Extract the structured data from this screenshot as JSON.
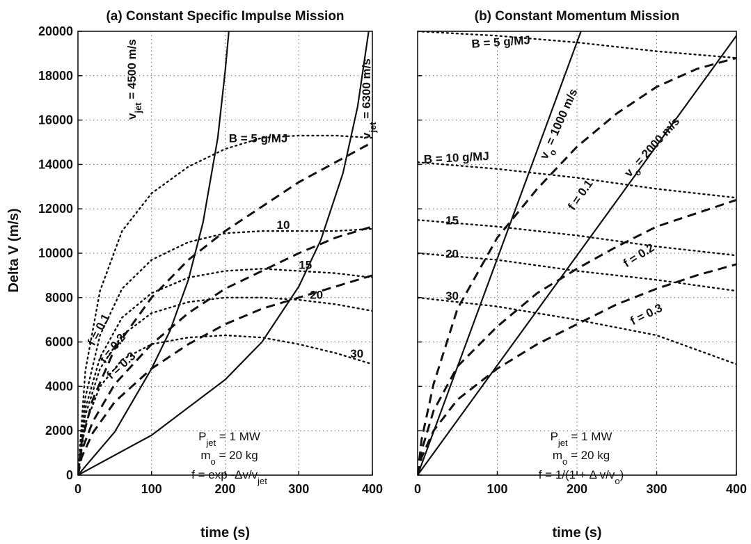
{
  "colors": {
    "ink": "#111111",
    "grid": "#666666",
    "background": "#ffffff"
  },
  "ylabel": "Delta V (m/s)",
  "xlabel": "time (s)",
  "chart_data": [
    {
      "type": "line",
      "title": "(a) Constant Specific Impulse Mission",
      "xlabel": "time (s)",
      "ylabel": "Delta V (m/s)",
      "xlim": [
        0,
        400
      ],
      "ylim": [
        0,
        20000
      ],
      "xticks": [
        "0",
        "100",
        "200",
        "300",
        "400"
      ],
      "yticks": [
        "0",
        "2000",
        "4000",
        "6000",
        "8000",
        "10000",
        "12000",
        "14000",
        "16000",
        "18000",
        "20000"
      ],
      "grid": true,
      "params": {
        "line1": "P",
        "line1_sub": "jet",
        "line1_tail": " = 1 MW",
        "line2": "m",
        "line2_sub": "o",
        "line2_tail": " = 20 kg",
        "line3": "f = exp -Δv/v",
        "line3_sub": "jet"
      },
      "series": [
        {
          "name": "v_jet = 4500 m/s",
          "style": "solid",
          "x": [
            0,
            50,
            100,
            125,
            150,
            170,
            190,
            200,
            205
          ],
          "y": [
            0,
            1950,
            4800,
            6500,
            8800,
            11400,
            15200,
            18200,
            20000
          ]
        },
        {
          "name": "v_jet = 6300 m/s",
          "style": "solid",
          "x": [
            0,
            100,
            200,
            250,
            300,
            330,
            360,
            380,
            395
          ],
          "y": [
            0,
            1800,
            4300,
            6000,
            8500,
            10600,
            13600,
            16600,
            20000
          ]
        },
        {
          "name": "f = 0.1",
          "style": "dashed",
          "x": [
            0,
            5,
            20,
            50,
            100,
            150,
            200,
            250,
            300,
            350,
            400
          ],
          "y": [
            0,
            1500,
            3400,
            5700,
            8000,
            9700,
            11000,
            12100,
            13200,
            14100,
            15000
          ]
        },
        {
          "name": "f = 0.2",
          "style": "dashed",
          "x": [
            0,
            5,
            20,
            50,
            100,
            150,
            200,
            250,
            300,
            350,
            400
          ],
          "y": [
            0,
            1100,
            2400,
            4100,
            5900,
            7300,
            8400,
            9200,
            10000,
            10700,
            11200
          ]
        },
        {
          "name": "f = 0.3",
          "style": "dashed",
          "x": [
            0,
            5,
            20,
            50,
            100,
            150,
            200,
            250,
            300,
            350,
            400
          ],
          "y": [
            0,
            800,
            1900,
            3300,
            4800,
            5900,
            6800,
            7500,
            8000,
            8500,
            9000
          ]
        },
        {
          "name": "B = 5 g/MJ",
          "style": "dotted",
          "x": [
            0,
            10,
            30,
            60,
            100,
            150,
            200,
            250,
            300,
            350,
            400
          ],
          "y": [
            0,
            4700,
            8300,
            11000,
            12700,
            13900,
            14700,
            15200,
            15300,
            15300,
            15200
          ]
        },
        {
          "name": "10",
          "style": "dotted",
          "x": [
            0,
            10,
            30,
            60,
            100,
            150,
            200,
            250,
            300,
            350,
            400
          ],
          "y": [
            0,
            3500,
            6300,
            8400,
            9700,
            10500,
            10900,
            11000,
            11000,
            11000,
            11100
          ]
        },
        {
          "name": "15",
          "style": "dotted",
          "x": [
            0,
            10,
            30,
            60,
            100,
            150,
            200,
            250,
            300,
            350,
            400
          ],
          "y": [
            0,
            3000,
            5300,
            7100,
            8200,
            8900,
            9200,
            9300,
            9200,
            9100,
            8900
          ]
        },
        {
          "name": "20",
          "style": "dotted",
          "x": [
            0,
            10,
            30,
            60,
            100,
            150,
            200,
            250,
            300,
            350,
            400
          ],
          "y": [
            0,
            2700,
            4800,
            6300,
            7300,
            7800,
            8000,
            8000,
            7900,
            7700,
            7400
          ]
        },
        {
          "name": "30",
          "style": "dotted",
          "x": [
            0,
            10,
            30,
            60,
            100,
            150,
            200,
            250,
            300,
            350,
            400
          ],
          "y": [
            0,
            2300,
            4000,
            5200,
            5900,
            6200,
            6300,
            6200,
            5900,
            5500,
            5000
          ]
        }
      ]
    },
    {
      "type": "line",
      "title": "(b) Constant Momentum Mission",
      "xlabel": "time (s)",
      "xlim": [
        0,
        400
      ],
      "ylim": [
        0,
        20000
      ],
      "xticks": [
        "0",
        "100",
        "200",
        "300",
        "400"
      ],
      "grid": true,
      "params": {
        "line1": "P",
        "line1_sub": "jet",
        "line1_tail": " = 1 MW",
        "line2": "m",
        "line2_sub": "o",
        "line2_tail": " = 20 kg",
        "line3": "f = 1/(1 + Δ v/v",
        "line3_sub": "o",
        "line3_tail": ")"
      },
      "series": [
        {
          "name": "v_o = 1000 m/s",
          "style": "solid",
          "x": [
            0,
            205
          ],
          "y": [
            0,
            20000
          ]
        },
        {
          "name": "v_o = 2000 m/s",
          "style": "solid",
          "x": [
            0,
            400
          ],
          "y": [
            0,
            19800
          ]
        },
        {
          "name": "f = 0.1",
          "style": "dashed",
          "x": [
            0,
            5,
            20,
            50,
            100,
            150,
            200,
            250,
            300,
            350,
            400
          ],
          "y": [
            0,
            1600,
            4100,
            7500,
            10700,
            12900,
            14800,
            16300,
            17500,
            18300,
            18800
          ]
        },
        {
          "name": "f = 0.2",
          "style": "dashed",
          "x": [
            0,
            5,
            20,
            50,
            100,
            150,
            200,
            250,
            300,
            350,
            400
          ],
          "y": [
            0,
            1100,
            2900,
            4900,
            6700,
            8200,
            9300,
            10300,
            11200,
            11800,
            12400
          ]
        },
        {
          "name": "f = 0.3",
          "style": "dashed",
          "x": [
            0,
            5,
            20,
            50,
            100,
            150,
            200,
            250,
            300,
            350,
            400
          ],
          "y": [
            0,
            800,
            2000,
            3400,
            4800,
            5900,
            6800,
            7700,
            8400,
            9000,
            9500
          ]
        },
        {
          "name": "B = 5 g/MJ",
          "style": "dotted",
          "x": [
            0,
            100,
            200,
            300,
            400
          ],
          "y": [
            20000,
            19800,
            19500,
            19100,
            18800
          ]
        },
        {
          "name": "B = 10 g/MJ",
          "style": "dotted",
          "x": [
            0,
            100,
            200,
            300,
            400
          ],
          "y": [
            14100,
            13800,
            13400,
            12900,
            12500
          ]
        },
        {
          "name": "15",
          "style": "dotted",
          "x": [
            0,
            100,
            200,
            300,
            400
          ],
          "y": [
            11500,
            11200,
            10800,
            10300,
            9900
          ]
        },
        {
          "name": "20",
          "style": "dotted",
          "x": [
            0,
            100,
            200,
            300,
            400
          ],
          "y": [
            10000,
            9700,
            9200,
            8800,
            8300
          ]
        },
        {
          "name": "30",
          "style": "dotted",
          "x": [
            0,
            100,
            200,
            300,
            400
          ],
          "y": [
            8000,
            7600,
            7000,
            6300,
            5000
          ]
        }
      ]
    }
  ]
}
